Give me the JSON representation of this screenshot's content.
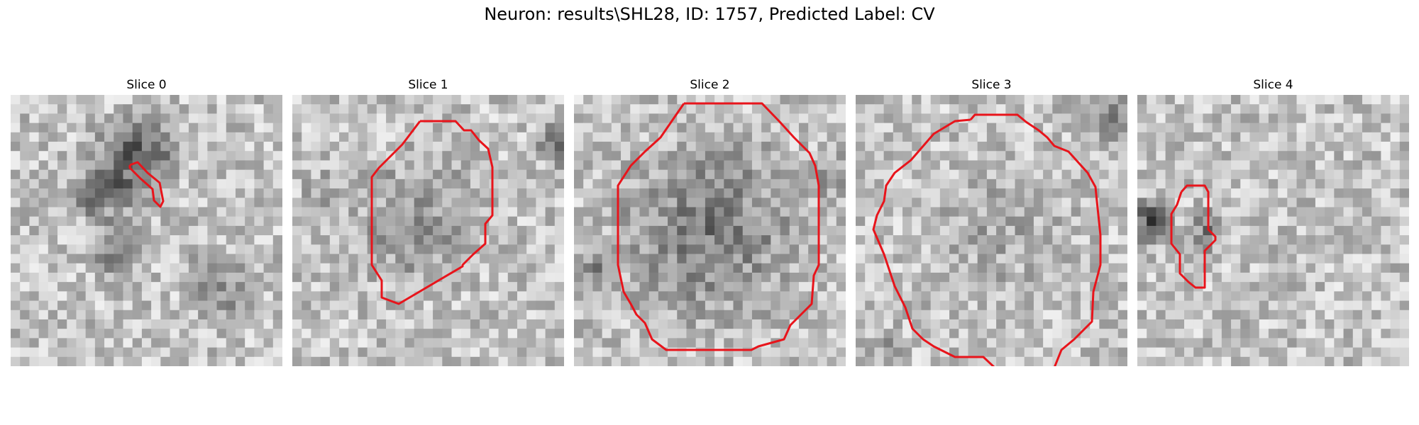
{
  "figure": {
    "title": "Neuron: results\\SHL28, ID: 1757, Predicted Label: CV"
  },
  "colors": {
    "contour": "#e8141b",
    "background": "#ffffff"
  },
  "slices": [
    {
      "label": "Slice 0"
    },
    {
      "label": "Slice 1"
    },
    {
      "label": "Slice 2"
    },
    {
      "label": "Slice 3"
    },
    {
      "label": "Slice 4"
    }
  ]
}
